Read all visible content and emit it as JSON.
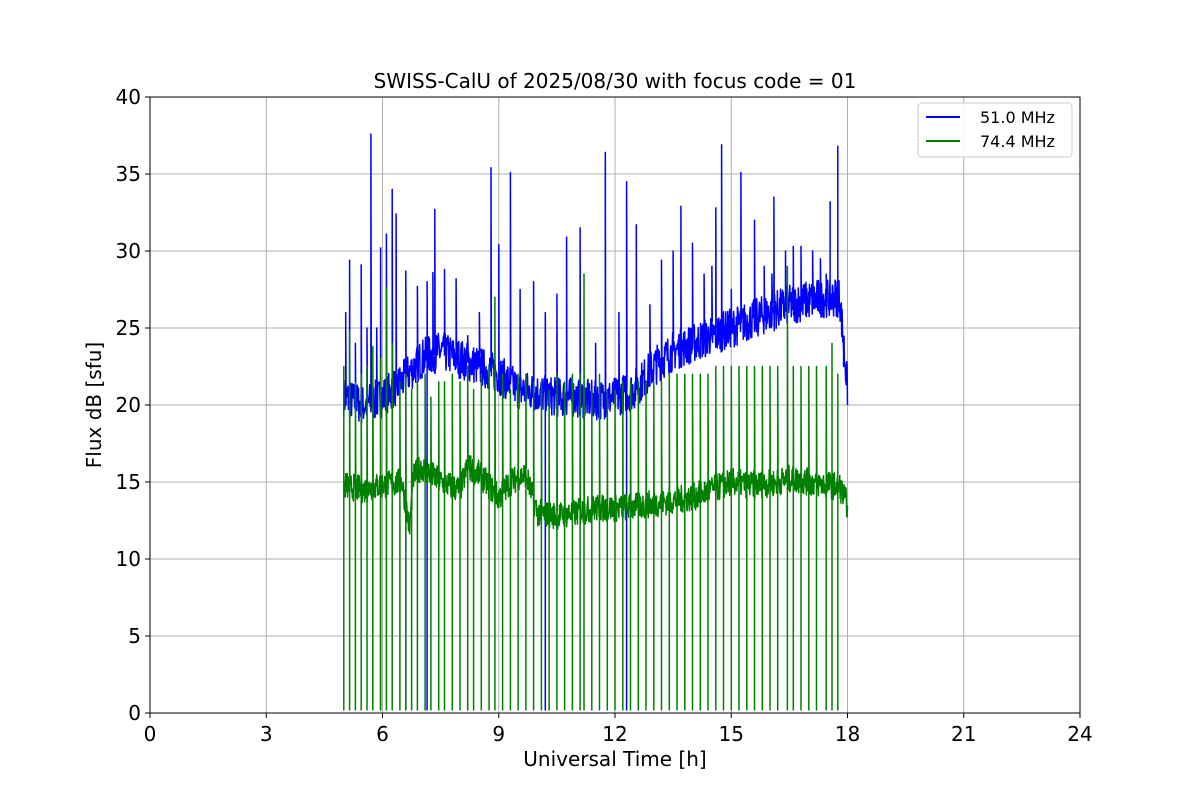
{
  "chart_data": {
    "type": "line",
    "title": "SWISS-CalU of 2025/08/30 with focus code = 01",
    "xlabel": "Universal Time [h]",
    "ylabel": "Flux dB [sfu]",
    "xlim": [
      0,
      24
    ],
    "ylim": [
      0,
      40
    ],
    "xticks": [
      0,
      3,
      6,
      9,
      12,
      15,
      18,
      21,
      24
    ],
    "yticks": [
      0,
      5,
      10,
      15,
      20,
      25,
      30,
      35,
      40
    ],
    "grid": true,
    "legend_position": "top-right",
    "series": [
      {
        "name": "51.0 MHz",
        "color": "#0000ff",
        "baseline": [
          [
            5.0,
            20.5
          ],
          [
            5.5,
            20.0
          ],
          [
            6.0,
            20.5
          ],
          [
            6.5,
            21.5
          ],
          [
            7.0,
            23.0
          ],
          [
            7.5,
            23.5
          ],
          [
            8.0,
            23.0
          ],
          [
            8.5,
            22.5
          ],
          [
            9.0,
            22.0
          ],
          [
            9.5,
            21.0
          ],
          [
            10.0,
            20.8
          ],
          [
            10.5,
            20.5
          ],
          [
            11.0,
            20.5
          ],
          [
            11.5,
            20.3
          ],
          [
            12.0,
            20.5
          ],
          [
            12.5,
            21.0
          ],
          [
            13.0,
            22.5
          ],
          [
            13.5,
            23.5
          ],
          [
            14.0,
            24.0
          ],
          [
            14.5,
            24.5
          ],
          [
            15.0,
            25.0
          ],
          [
            15.5,
            25.5
          ],
          [
            16.0,
            26.0
          ],
          [
            16.5,
            26.5
          ],
          [
            17.0,
            26.8
          ],
          [
            17.5,
            27.0
          ],
          [
            17.8,
            27.0
          ],
          [
            18.0,
            21.0
          ]
        ],
        "spikes": [
          [
            5.05,
            26.0
          ],
          [
            5.15,
            29.4
          ],
          [
            5.3,
            24.0
          ],
          [
            5.45,
            29.1
          ],
          [
            5.6,
            25.0
          ],
          [
            5.7,
            37.6
          ],
          [
            5.85,
            25.0
          ],
          [
            5.95,
            30.2
          ],
          [
            6.1,
            31.1
          ],
          [
            6.25,
            34.0
          ],
          [
            6.35,
            32.4
          ],
          [
            6.6,
            28.7
          ],
          [
            6.9,
            27.7
          ],
          [
            7.15,
            28.0
          ],
          [
            7.3,
            28.6
          ],
          [
            7.35,
            32.7
          ],
          [
            7.6,
            28.8
          ],
          [
            7.9,
            28.2
          ],
          [
            8.2,
            24.5
          ],
          [
            8.5,
            26.0
          ],
          [
            8.8,
            35.4
          ],
          [
            9.0,
            30.4
          ],
          [
            9.3,
            35.1
          ],
          [
            9.55,
            27.5
          ],
          [
            9.9,
            28.0
          ],
          [
            10.2,
            26.0
          ],
          [
            10.5,
            27.2
          ],
          [
            10.75,
            30.9
          ],
          [
            11.1,
            31.5
          ],
          [
            11.5,
            24.0
          ],
          [
            11.75,
            36.4
          ],
          [
            12.1,
            26.0
          ],
          [
            12.3,
            34.5
          ],
          [
            12.55,
            31.7
          ],
          [
            12.9,
            26.5
          ],
          [
            13.2,
            29.4
          ],
          [
            13.5,
            30.0
          ],
          [
            13.7,
            32.9
          ],
          [
            14.0,
            30.5
          ],
          [
            14.3,
            28.5
          ],
          [
            14.5,
            29.0
          ],
          [
            14.6,
            32.8
          ],
          [
            14.75,
            36.9
          ],
          [
            15.0,
            27.5
          ],
          [
            15.25,
            35.1
          ],
          [
            15.6,
            32.0
          ],
          [
            15.85,
            29.0
          ],
          [
            16.05,
            28.5
          ],
          [
            16.1,
            33.5
          ],
          [
            16.4,
            30.0
          ],
          [
            16.6,
            30.3
          ],
          [
            16.8,
            30.3
          ],
          [
            17.1,
            30.0
          ],
          [
            17.3,
            29.5
          ],
          [
            17.45,
            28.5
          ],
          [
            17.55,
            33.2
          ],
          [
            17.75,
            36.8
          ],
          [
            17.9,
            22.5
          ]
        ]
      },
      {
        "name": "74.4 MHz",
        "color": "#008000",
        "baseline": [
          [
            5.0,
            14.8
          ],
          [
            5.5,
            14.5
          ],
          [
            6.0,
            14.8
          ],
          [
            6.5,
            15.0
          ],
          [
            6.7,
            12.0
          ],
          [
            6.8,
            15.3
          ],
          [
            7.0,
            16.0
          ],
          [
            7.5,
            15.0
          ],
          [
            8.0,
            14.5
          ],
          [
            8.2,
            16.0
          ],
          [
            8.5,
            15.5
          ],
          [
            9.0,
            14.0
          ],
          [
            9.3,
            15.0
          ],
          [
            9.7,
            15.5
          ],
          [
            10.0,
            13.0
          ],
          [
            10.5,
            12.8
          ],
          [
            11.0,
            13.0
          ],
          [
            11.5,
            13.3
          ],
          [
            12.0,
            13.3
          ],
          [
            12.5,
            13.4
          ],
          [
            13.0,
            13.6
          ],
          [
            13.5,
            13.8
          ],
          [
            14.0,
            14.0
          ],
          [
            14.5,
            14.5
          ],
          [
            15.0,
            15.0
          ],
          [
            15.5,
            14.8
          ],
          [
            16.0,
            14.9
          ],
          [
            16.5,
            15.2
          ],
          [
            17.0,
            15.0
          ],
          [
            17.5,
            14.8
          ],
          [
            17.8,
            14.7
          ],
          [
            18.0,
            13.5
          ]
        ],
        "spikes": [
          [
            5.0,
            22.5
          ],
          [
            5.15,
            24.8
          ],
          [
            5.3,
            21.5
          ],
          [
            5.45,
            22.0
          ],
          [
            5.6,
            22.5
          ],
          [
            5.75,
            23.8
          ],
          [
            5.95,
            23.0
          ],
          [
            6.1,
            27.6
          ],
          [
            6.25,
            24.0
          ],
          [
            6.45,
            21.5
          ],
          [
            6.6,
            22.0
          ],
          [
            6.75,
            21.0
          ],
          [
            6.9,
            21.5
          ],
          [
            7.1,
            22.0
          ],
          [
            7.25,
            20.5
          ],
          [
            7.45,
            21.5
          ],
          [
            7.6,
            21.5
          ],
          [
            7.8,
            22.0
          ],
          [
            8.0,
            21.5
          ],
          [
            8.2,
            22.5
          ],
          [
            8.35,
            21.0
          ],
          [
            8.55,
            22.0
          ],
          [
            8.75,
            22.5
          ],
          [
            8.9,
            27.0
          ],
          [
            9.1,
            22.0
          ],
          [
            9.3,
            21.0
          ],
          [
            9.5,
            22.0
          ],
          [
            9.7,
            22.0
          ],
          [
            9.9,
            21.5
          ],
          [
            10.1,
            21.5
          ],
          [
            10.3,
            21.0
          ],
          [
            10.5,
            22.0
          ],
          [
            10.7,
            21.5
          ],
          [
            10.9,
            22.0
          ],
          [
            11.1,
            22.0
          ],
          [
            11.2,
            28.5
          ],
          [
            11.4,
            21.0
          ],
          [
            11.6,
            22.0
          ],
          [
            11.8,
            21.0
          ],
          [
            12.0,
            21.0
          ],
          [
            12.2,
            21.5
          ],
          [
            12.4,
            21.5
          ],
          [
            12.6,
            21.5
          ],
          [
            12.8,
            21.5
          ],
          [
            13.0,
            21.5
          ],
          [
            13.2,
            21.5
          ],
          [
            13.4,
            22.0
          ],
          [
            13.6,
            22.0
          ],
          [
            13.8,
            22.0
          ],
          [
            14.0,
            22.0
          ],
          [
            14.2,
            22.0
          ],
          [
            14.4,
            22.0
          ],
          [
            14.6,
            22.5
          ],
          [
            14.8,
            22.5
          ],
          [
            15.0,
            22.5
          ],
          [
            15.2,
            22.5
          ],
          [
            15.4,
            22.5
          ],
          [
            15.6,
            22.5
          ],
          [
            15.8,
            22.5
          ],
          [
            16.0,
            22.5
          ],
          [
            16.2,
            22.5
          ],
          [
            16.45,
            29.0
          ],
          [
            16.6,
            22.5
          ],
          [
            16.8,
            22.5
          ],
          [
            17.0,
            22.5
          ],
          [
            17.2,
            22.5
          ],
          [
            17.45,
            22.5
          ],
          [
            17.6,
            24.0
          ],
          [
            17.75,
            22.0
          ]
        ]
      }
    ],
    "dropouts_to_zero_from_h": 5.0,
    "dropouts_to_zero_until_h": 17.8
  }
}
